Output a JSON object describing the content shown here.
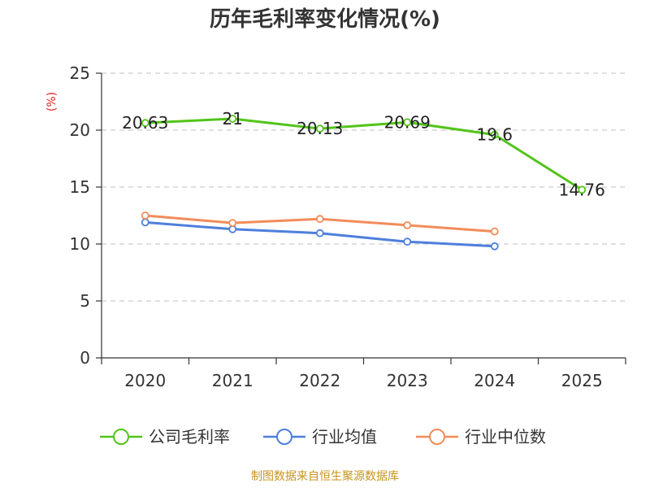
{
  "chart_data": {
    "type": "line",
    "title": "历年毛利率变化情况(%)",
    "ylabel": "(%)",
    "xlabel": "",
    "categories": [
      "2020",
      "2021",
      "2022",
      "2023",
      "2024",
      "2025"
    ],
    "ylim": [
      0,
      25
    ],
    "yticks": [
      0,
      5,
      10,
      15,
      20,
      25
    ],
    "grid": true,
    "legend_position": "bottom",
    "series": [
      {
        "name": "公司毛利率",
        "color": "#52c41a",
        "values": [
          20.63,
          21,
          20.13,
          20.69,
          19.6,
          14.76
        ],
        "labels": [
          "20.63",
          "21",
          "20.13",
          "20.69",
          "19.6",
          "14.76"
        ]
      },
      {
        "name": "行业均值",
        "color": "#4e7fdc",
        "values": [
          11.9,
          11.3,
          10.95,
          10.2,
          9.8,
          null
        ]
      },
      {
        "name": "行业中位数",
        "color": "#f28c5a",
        "values": [
          12.5,
          11.85,
          12.2,
          11.65,
          11.1,
          null
        ]
      }
    ],
    "source": "制图数据来自恒生聚源数据库",
    "colors": {
      "unit_label": "#e02020",
      "source": "#c8941e",
      "axis": "#333333",
      "grid": "#cccccc"
    }
  }
}
